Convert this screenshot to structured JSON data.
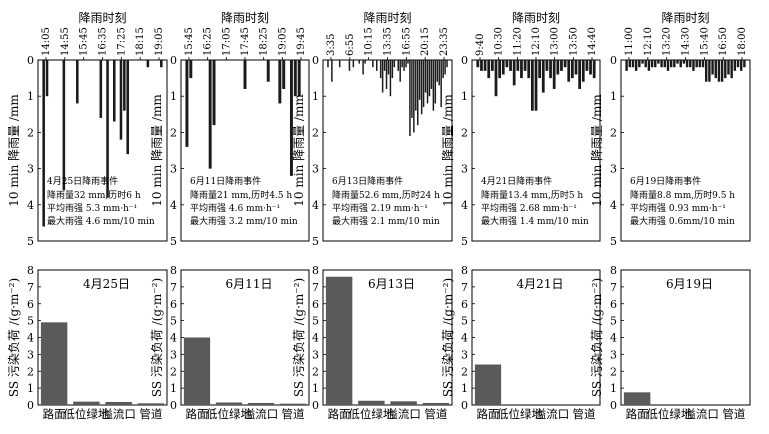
{
  "top_axis_title": "降雨时刻",
  "rain_ylabel": "10 min 降雨量 /mm",
  "ss_ylabel": "SS 污染负荷 /(g·m⁻²)",
  "rain_yticks": [
    "0",
    "1",
    "2",
    "3",
    "4",
    "5"
  ],
  "ss_yticks": [
    "0",
    "1",
    "2",
    "3",
    "4",
    "5",
    "6",
    "7",
    "8"
  ],
  "site_categories": [
    "路面",
    "低位绿地",
    "溢流口",
    "管道"
  ],
  "colors": {
    "bar": "#5a5a5a",
    "rain": "#1a1a1a",
    "axis": "#000000"
  },
  "chart_data": [
    {
      "type": "bar",
      "title": "降雨时刻",
      "ylabel": "10 min 降雨量 /mm",
      "ylim": [
        0,
        5
      ],
      "y_inverted": true,
      "time_ticks": [
        "14:05",
        "14:55",
        "15:45",
        "16:35",
        "17:25",
        "18:15",
        "19:05"
      ],
      "values": [
        4.6,
        1.0,
        0,
        0,
        0,
        0,
        3.6,
        0,
        0,
        0,
        1.2,
        0,
        0,
        0,
        0,
        0,
        0,
        1.6,
        0,
        3.8,
        0,
        1.7,
        0,
        2.2,
        1.4,
        2.6,
        0,
        0,
        0,
        0,
        0,
        0.2,
        0,
        0,
        0,
        0.2
      ],
      "event_label": "4月25日降雨事件",
      "annotations": [
        "降雨量32 mm,历时6 h",
        "平均雨强 5.3 mm·h⁻¹",
        "最大雨强 4.6 mm/10 min"
      ]
    },
    {
      "type": "bar",
      "title": "降雨时刻",
      "ylabel": "10 min 降雨量 /mm",
      "ylim": [
        0,
        5
      ],
      "y_inverted": true,
      "time_ticks": [
        "15:45",
        "16:25",
        "17:05",
        "17:45",
        "18:25",
        "19:05",
        "19:45"
      ],
      "values": [
        2.4,
        0.5,
        0,
        0,
        0,
        0,
        3.0,
        1.8,
        0,
        0,
        0,
        0,
        0,
        0,
        0,
        0.8,
        0,
        0,
        0,
        0,
        0,
        0.6,
        0,
        0,
        1.2,
        0.8,
        0,
        3.2,
        1.0,
        1.0,
        0
      ],
      "event_label": "6月11日降雨事件",
      "annotations": [
        "降雨量21 mm,历时4.5 h",
        "平均雨强 4.6 mm·h⁻¹",
        "最大雨强 3.2 mm/10 min"
      ]
    },
    {
      "type": "bar",
      "title": "降雨时刻",
      "ylabel": "10 min 降雨量 /mm",
      "ylim": [
        0,
        5
      ],
      "y_inverted": true,
      "time_ticks": [
        "3:35",
        "6:55",
        "10:15",
        "13:35",
        "16:55",
        "20:15",
        "23:35"
      ],
      "values": [
        0.2,
        0,
        0.6,
        0,
        0,
        0,
        0.2,
        0,
        0,
        0,
        0,
        0.3,
        0,
        0.2,
        0,
        0,
        0.1,
        0,
        0.4,
        0.1,
        0,
        0,
        0,
        0.2,
        0,
        0.3,
        0,
        0.5,
        0.9,
        0.3,
        0.8,
        0.4,
        1.0,
        0.5,
        0.2,
        0,
        0.3,
        0.6,
        0.2,
        0.3,
        0.2,
        0.1,
        2.1,
        1.6,
        2.0,
        1.4,
        1.8,
        1.1,
        1.5,
        1.3,
        0.9,
        1.2,
        1.0,
        0.8,
        1.4,
        1.2,
        0.6,
        0.7,
        1.3,
        0.5,
        0.4,
        0.2
      ],
      "event_label": "6月13日降雨事件",
      "annotations": [
        "降雨量52.6 mm,历时24 h",
        "平均雨强 2.19 mm·h⁻¹",
        "最大雨强 2.1 mm/10 min"
      ]
    },
    {
      "type": "bar",
      "title": "降雨时刻",
      "ylabel": "10 min 降雨量 /mm",
      "ylim": [
        0,
        5
      ],
      "y_inverted": true,
      "time_ticks": [
        "9:40",
        "10:30",
        "11:20",
        "12:10",
        "13:00",
        "13:50",
        "14:40"
      ],
      "values": [
        0.2,
        0.3,
        0.3,
        0.5,
        0.3,
        1.0,
        0.5,
        0.4,
        0.2,
        0.3,
        0.7,
        0.3,
        0.5,
        0.3,
        0.5,
        1.4,
        1.4,
        0.5,
        0.9,
        0.3,
        0.5,
        0.8,
        0.4,
        0.3,
        0.2,
        0.6,
        0.5,
        0.4,
        0.8,
        0.6,
        0.3,
        0.4,
        0.5
      ],
      "event_label": "4月21日降雨事件",
      "annotations": [
        "降雨量13.4 mm,历时5 h",
        "平均雨强 2.68 mm·h⁻¹",
        "最大雨强 1.4 mm/10 min"
      ]
    },
    {
      "type": "bar",
      "title": "降雨时刻",
      "ylabel": "10 min 降雨量 /mm",
      "ylim": [
        0,
        5
      ],
      "y_inverted": true,
      "time_ticks": [
        "11:00",
        "12:10",
        "13:20",
        "14:30",
        "15:40",
        "16:50",
        "18:00"
      ],
      "values": [
        0.3,
        0.2,
        0.2,
        0.3,
        0.2,
        0.1,
        0.2,
        0.3,
        0.2,
        0.2,
        0.1,
        0.2,
        0.2,
        0.3,
        0.2,
        0.2,
        0.1,
        0.2,
        0.1,
        0.2,
        0.2,
        0.3,
        0.2,
        0.2,
        0.2,
        0.6,
        0.6,
        0.4,
        0.5,
        0.6,
        0.6,
        0.5,
        0.4,
        0.5,
        0.3,
        0.2,
        0.3,
        0.2
      ],
      "event_label": "6月19日降雨事件",
      "annotations": [
        "降雨量8.8 mm,历时9.5 h",
        "平均雨强 0.93 mm·h⁻¹",
        "最大雨强 0.6mm/10 min"
      ]
    },
    {
      "type": "bar",
      "title": "4月25日",
      "ylabel": "SS 污染负荷 /(g·m⁻²)",
      "ylim": [
        0,
        8
      ],
      "categories": [
        "路面",
        "低位绿地",
        "溢流口",
        "管道"
      ],
      "values": [
        4.9,
        0.2,
        0.18,
        0.1
      ]
    },
    {
      "type": "bar",
      "title": "6月11日",
      "ylabel": "SS 污染负荷 /(g·m⁻²)",
      "ylim": [
        0,
        8
      ],
      "categories": [
        "路面",
        "低位绿地",
        "溢流口",
        "管道"
      ],
      "values": [
        4.0,
        0.15,
        0.12,
        0.08
      ]
    },
    {
      "type": "bar",
      "title": "6月13日",
      "ylabel": "SS 污染负荷 /(g·m⁻²)",
      "ylim": [
        0,
        8
      ],
      "categories": [
        "路面",
        "低位绿地",
        "溢流口",
        "管道"
      ],
      "values": [
        7.6,
        0.25,
        0.22,
        0.12
      ]
    },
    {
      "type": "bar",
      "title": "4月21日",
      "ylabel": "SS 污染负荷 /(g·m⁻²)",
      "ylim": [
        0,
        8
      ],
      "categories": [
        "路面",
        "低位绿地",
        "溢流口",
        "管道"
      ],
      "values": [
        2.4,
        0,
        0,
        0
      ]
    },
    {
      "type": "bar",
      "title": "6月19日",
      "ylabel": "SS 污染负荷 /(g·m⁻²)",
      "ylim": [
        0,
        8
      ],
      "categories": [
        "路面",
        "低位绿地",
        "溢流口",
        "管道"
      ],
      "values": [
        0.75,
        0,
        0,
        0
      ]
    }
  ]
}
